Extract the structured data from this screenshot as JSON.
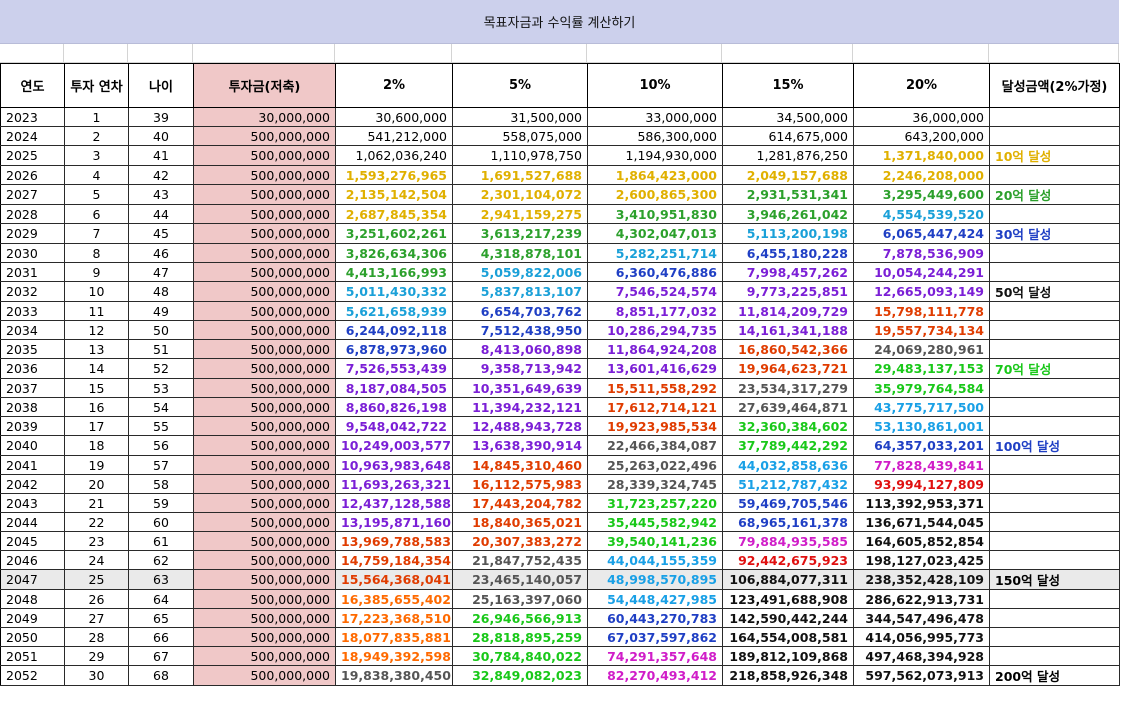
{
  "title": "목표자금과 수익률 계산하기",
  "headers": [
    "연도",
    "투자 연차",
    "나이",
    "투자금(저축)",
    "2%",
    "5%",
    "10%",
    "15%",
    "20%",
    "달성금액(2%가정)"
  ],
  "colors": {
    "black": "#000000",
    "darkgreen": "#1a1a1a",
    "gold": "#e0b000",
    "green": "#2ca02c",
    "teal": "#1aa0d8",
    "blue": "#1f3fc4",
    "purple": "#7b1fd6",
    "red": "#e03c00",
    "orange": "#ff6a00",
    "gray": "#555555",
    "lime": "#19c819",
    "skyblue": "#19a0e6",
    "magenta": "#d01dc8",
    "crimson": "#e01010",
    "boldblack": "#111111"
  },
  "rows": [
    {
      "year": "2023",
      "n": "1",
      "age": "39",
      "inv": "30,000,000",
      "v": [
        "30,600,000",
        "31,500,000",
        "33,000,000",
        "34,500,000",
        "36,000,000"
      ],
      "c": [
        "black",
        "black",
        "black",
        "black",
        "black"
      ],
      "ach": "",
      "ac": "black"
    },
    {
      "year": "2024",
      "n": "2",
      "age": "40",
      "inv": "500,000,000",
      "v": [
        "541,212,000",
        "558,075,000",
        "586,300,000",
        "614,675,000",
        "643,200,000"
      ],
      "c": [
        "black",
        "black",
        "black",
        "black",
        "black"
      ],
      "ach": "",
      "ac": "black"
    },
    {
      "year": "2025",
      "n": "3",
      "age": "41",
      "inv": "500,000,000",
      "v": [
        "1,062,036,240",
        "1,110,978,750",
        "1,194,930,000",
        "1,281,876,250",
        "1,371,840,000"
      ],
      "c": [
        "black",
        "black",
        "black",
        "black",
        "gold"
      ],
      "ach": "10억 달성",
      "ac": "gold"
    },
    {
      "year": "2026",
      "n": "4",
      "age": "42",
      "inv": "500,000,000",
      "v": [
        "1,593,276,965",
        "1,691,527,688",
        "1,864,423,000",
        "2,049,157,688",
        "2,246,208,000"
      ],
      "c": [
        "gold",
        "gold",
        "gold",
        "gold",
        "gold"
      ],
      "ach": "",
      "ac": "black"
    },
    {
      "year": "2027",
      "n": "5",
      "age": "43",
      "inv": "500,000,000",
      "v": [
        "2,135,142,504",
        "2,301,104,072",
        "2,600,865,300",
        "2,931,531,341",
        "3,295,449,600"
      ],
      "c": [
        "gold",
        "gold",
        "gold",
        "green",
        "green"
      ],
      "ach": "20억 달성",
      "ac": "green"
    },
    {
      "year": "2028",
      "n": "6",
      "age": "44",
      "inv": "500,000,000",
      "v": [
        "2,687,845,354",
        "2,941,159,275",
        "3,410,951,830",
        "3,946,261,042",
        "4,554,539,520"
      ],
      "c": [
        "gold",
        "gold",
        "green",
        "green",
        "teal"
      ],
      "ach": "",
      "ac": "black"
    },
    {
      "year": "2029",
      "n": "7",
      "age": "45",
      "inv": "500,000,000",
      "v": [
        "3,251,602,261",
        "3,613,217,239",
        "4,302,047,013",
        "5,113,200,198",
        "6,065,447,424"
      ],
      "c": [
        "green",
        "green",
        "green",
        "teal",
        "blue"
      ],
      "ach": "30억 달성",
      "ac": "blue"
    },
    {
      "year": "2030",
      "n": "8",
      "age": "46",
      "inv": "500,000,000",
      "v": [
        "3,826,634,306",
        "4,318,878,101",
        "5,282,251,714",
        "6,455,180,228",
        "7,878,536,909"
      ],
      "c": [
        "green",
        "green",
        "teal",
        "blue",
        "purple"
      ],
      "ach": "",
      "ac": "black"
    },
    {
      "year": "2031",
      "n": "9",
      "age": "47",
      "inv": "500,000,000",
      "v": [
        "4,413,166,993",
        "5,059,822,006",
        "6,360,476,886",
        "7,998,457,262",
        "10,054,244,291"
      ],
      "c": [
        "green",
        "teal",
        "blue",
        "purple",
        "purple"
      ],
      "ach": "",
      "ac": "black"
    },
    {
      "year": "2032",
      "n": "10",
      "age": "48",
      "inv": "500,000,000",
      "v": [
        "5,011,430,332",
        "5,837,813,107",
        "7,546,524,574",
        "9,773,225,851",
        "12,665,093,149"
      ],
      "c": [
        "teal",
        "teal",
        "purple",
        "purple",
        "purple"
      ],
      "ach": "50억 달성",
      "ac": "boldblack"
    },
    {
      "year": "2033",
      "n": "11",
      "age": "49",
      "inv": "500,000,000",
      "v": [
        "5,621,658,939",
        "6,654,703,762",
        "8,851,177,032",
        "11,814,209,729",
        "15,798,111,778"
      ],
      "c": [
        "teal",
        "blue",
        "purple",
        "purple",
        "red"
      ],
      "ach": "",
      "ac": "black"
    },
    {
      "year": "2034",
      "n": "12",
      "age": "50",
      "inv": "500,000,000",
      "v": [
        "6,244,092,118",
        "7,512,438,950",
        "10,286,294,735",
        "14,161,341,188",
        "19,557,734,134"
      ],
      "c": [
        "blue",
        "blue",
        "purple",
        "purple",
        "red"
      ],
      "ach": "",
      "ac": "black"
    },
    {
      "year": "2035",
      "n": "13",
      "age": "51",
      "inv": "500,000,000",
      "v": [
        "6,878,973,960",
        "8,413,060,898",
        "11,864,924,208",
        "16,860,542,366",
        "24,069,280,961"
      ],
      "c": [
        "blue",
        "purple",
        "purple",
        "red",
        "gray"
      ],
      "ach": "",
      "ac": "black"
    },
    {
      "year": "2036",
      "n": "14",
      "age": "52",
      "inv": "500,000,000",
      "v": [
        "7,526,553,439",
        "9,358,713,942",
        "13,601,416,629",
        "19,964,623,721",
        "29,483,137,153"
      ],
      "c": [
        "purple",
        "purple",
        "purple",
        "red",
        "lime"
      ],
      "ach": "70억 달성",
      "ac": "lime"
    },
    {
      "year": "2037",
      "n": "15",
      "age": "53",
      "inv": "500,000,000",
      "v": [
        "8,187,084,505",
        "10,351,649,639",
        "15,511,558,292",
        "23,534,317,279",
        "35,979,764,584"
      ],
      "c": [
        "purple",
        "purple",
        "red",
        "gray",
        "lime"
      ],
      "ach": "",
      "ac": "black"
    },
    {
      "year": "2038",
      "n": "16",
      "age": "54",
      "inv": "500,000,000",
      "v": [
        "8,860,826,198",
        "11,394,232,121",
        "17,612,714,121",
        "27,639,464,871",
        "43,775,717,500"
      ],
      "c": [
        "purple",
        "purple",
        "red",
        "gray",
        "skyblue"
      ],
      "ach": "",
      "ac": "black"
    },
    {
      "year": "2039",
      "n": "17",
      "age": "55",
      "inv": "500,000,000",
      "v": [
        "9,548,042,722",
        "12,488,943,728",
        "19,923,985,534",
        "32,360,384,602",
        "53,130,861,001"
      ],
      "c": [
        "purple",
        "purple",
        "red",
        "lime",
        "skyblue"
      ],
      "ach": "",
      "ac": "black"
    },
    {
      "year": "2040",
      "n": "18",
      "age": "56",
      "inv": "500,000,000",
      "v": [
        "10,249,003,577",
        "13,638,390,914",
        "22,466,384,087",
        "37,789,442,292",
        "64,357,033,201"
      ],
      "c": [
        "purple",
        "purple",
        "gray",
        "lime",
        "blue"
      ],
      "ach": "100억 달성",
      "ac": "blue"
    },
    {
      "year": "2041",
      "n": "19",
      "age": "57",
      "inv": "500,000,000",
      "v": [
        "10,963,983,648",
        "14,845,310,460",
        "25,263,022,496",
        "44,032,858,636",
        "77,828,439,841"
      ],
      "c": [
        "purple",
        "red",
        "gray",
        "skyblue",
        "magenta"
      ],
      "ach": "",
      "ac": "black"
    },
    {
      "year": "2042",
      "n": "20",
      "age": "58",
      "inv": "500,000,000",
      "v": [
        "11,693,263,321",
        "16,112,575,983",
        "28,339,324,745",
        "51,212,787,432",
        "93,994,127,809"
      ],
      "c": [
        "purple",
        "red",
        "gray",
        "skyblue",
        "crimson"
      ],
      "ach": "",
      "ac": "black"
    },
    {
      "year": "2043",
      "n": "21",
      "age": "59",
      "inv": "500,000,000",
      "v": [
        "12,437,128,588",
        "17,443,204,782",
        "31,723,257,220",
        "59,469,705,546",
        "113,392,953,371"
      ],
      "c": [
        "purple",
        "red",
        "lime",
        "blue",
        "boldblack"
      ],
      "ach": "",
      "ac": "black"
    },
    {
      "year": "2044",
      "n": "22",
      "age": "60",
      "inv": "500,000,000",
      "v": [
        "13,195,871,160",
        "18,840,365,021",
        "35,445,582,942",
        "68,965,161,378",
        "136,671,544,045"
      ],
      "c": [
        "purple",
        "red",
        "lime",
        "blue",
        "boldblack"
      ],
      "ach": "",
      "ac": "black"
    },
    {
      "year": "2045",
      "n": "23",
      "age": "61",
      "inv": "500,000,000",
      "v": [
        "13,969,788,583",
        "20,307,383,272",
        "39,540,141,236",
        "79,884,935,585",
        "164,605,852,854"
      ],
      "c": [
        "red",
        "red",
        "lime",
        "magenta",
        "boldblack"
      ],
      "ach": "",
      "ac": "black"
    },
    {
      "year": "2046",
      "n": "24",
      "age": "62",
      "inv": "500,000,000",
      "v": [
        "14,759,184,354",
        "21,847,752,435",
        "44,044,155,359",
        "92,442,675,923",
        "198,127,023,425"
      ],
      "c": [
        "red",
        "gray",
        "skyblue",
        "crimson",
        "boldblack"
      ],
      "ach": "",
      "ac": "black"
    },
    {
      "year": "2047",
      "n": "25",
      "age": "63",
      "inv": "500,000,000",
      "v": [
        "15,564,368,041",
        "23,465,140,057",
        "48,998,570,895",
        "106,884,077,311",
        "238,352,428,109"
      ],
      "c": [
        "red",
        "gray",
        "skyblue",
        "boldblack",
        "boldblack"
      ],
      "ach": "150억 달성",
      "ac": "black",
      "hl": true
    },
    {
      "year": "2048",
      "n": "26",
      "age": "64",
      "inv": "500,000,000",
      "v": [
        "16,385,655,402",
        "25,163,397,060",
        "54,448,427,985",
        "123,491,688,908",
        "286,622,913,731"
      ],
      "c": [
        "orange",
        "gray",
        "skyblue",
        "boldblack",
        "boldblack"
      ],
      "ach": "",
      "ac": "black"
    },
    {
      "year": "2049",
      "n": "27",
      "age": "65",
      "inv": "500,000,000",
      "v": [
        "17,223,368,510",
        "26,946,566,913",
        "60,443,270,783",
        "142,590,442,244",
        "344,547,496,478"
      ],
      "c": [
        "orange",
        "lime",
        "blue",
        "boldblack",
        "boldblack"
      ],
      "ach": "",
      "ac": "black"
    },
    {
      "year": "2050",
      "n": "28",
      "age": "66",
      "inv": "500,000,000",
      "v": [
        "18,077,835,881",
        "28,818,895,259",
        "67,037,597,862",
        "164,554,008,581",
        "414,056,995,773"
      ],
      "c": [
        "orange",
        "lime",
        "blue",
        "boldblack",
        "boldblack"
      ],
      "ach": "",
      "ac": "black"
    },
    {
      "year": "2051",
      "n": "29",
      "age": "67",
      "inv": "500,000,000",
      "v": [
        "18,949,392,598",
        "30,784,840,022",
        "74,291,357,648",
        "189,812,109,868",
        "497,468,394,928"
      ],
      "c": [
        "orange",
        "lime",
        "magenta",
        "boldblack",
        "boldblack"
      ],
      "ach": "",
      "ac": "black"
    },
    {
      "year": "2052",
      "n": "30",
      "age": "68",
      "inv": "500,000,000",
      "v": [
        "19,838,380,450",
        "32,849,082,023",
        "82,270,493,412",
        "218,858,926,348",
        "597,562,073,913"
      ],
      "c": [
        "gray",
        "lime",
        "magenta",
        "boldblack",
        "boldblack"
      ],
      "ach": "200억 달성",
      "ac": "black"
    }
  ]
}
